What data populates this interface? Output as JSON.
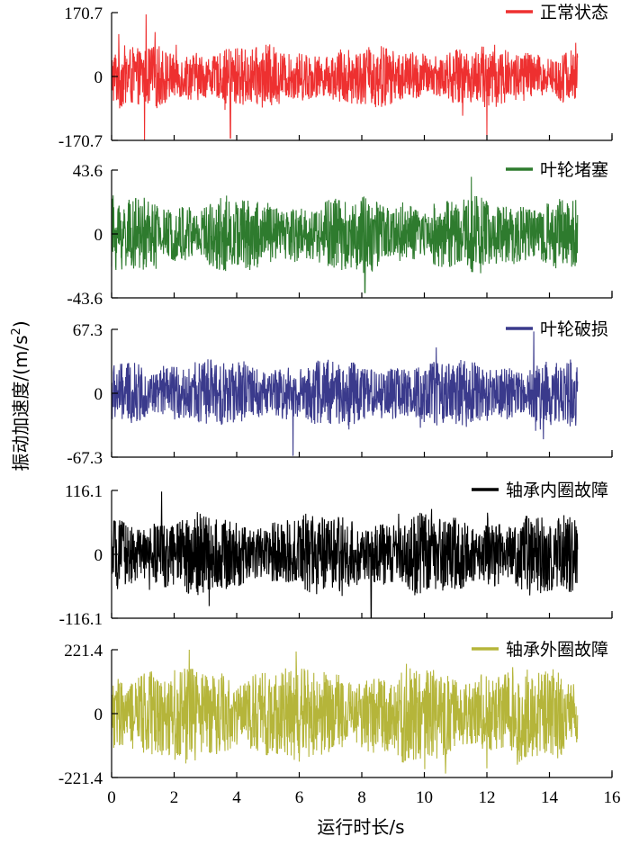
{
  "chart_data": {
    "type": "line",
    "xlabel": "运行时长/s",
    "ylabel_main": "振动加速度/(m/s",
    "ylabel_sup": "2",
    "ylabel_close": ")",
    "xlim": [
      0,
      16
    ],
    "xticks": [
      0,
      2,
      4,
      6,
      8,
      10,
      12,
      14,
      16
    ],
    "xtick_labels": [
      "0",
      "2",
      "4",
      "6",
      "8",
      "10",
      "12",
      "14",
      "16"
    ],
    "signal_duration_s": 14.9,
    "panels": [
      {
        "name": "正常状态",
        "color": "#ee3030",
        "ylim": [
          -170.7,
          170.7
        ],
        "ytick_labels": [
          "170.7",
          "0",
          "-170.7"
        ],
        "typical_amplitude": 70,
        "features": [
          {
            "x": 1.05,
            "value": -170
          },
          {
            "x": 1.1,
            "value": 166
          },
          {
            "x": 3.8,
            "value": -165
          },
          {
            "x": 12.0,
            "value": -160
          }
        ]
      },
      {
        "name": "叶轮堵塞",
        "color": "#2e7b2e",
        "ylim": [
          -43.6,
          43.6
        ],
        "ytick_labels": [
          "43.6",
          "0",
          "-43.6"
        ],
        "typical_amplitude": 22,
        "features": [
          {
            "x": 8.1,
            "value": -40
          },
          {
            "x": 11.5,
            "value": 39
          }
        ]
      },
      {
        "name": "叶轮破损",
        "color": "#3a3a8c",
        "ylim": [
          -67.3,
          67.3
        ],
        "ytick_labels": [
          "67.3",
          "0",
          "-67.3"
        ],
        "typical_amplitude": 30,
        "features": [
          {
            "x": 5.8,
            "value": -66
          },
          {
            "x": 13.5,
            "value": 65
          }
        ]
      },
      {
        "name": "轴承内圈故障",
        "color": "#000000",
        "ylim": [
          -116.1,
          116.1
        ],
        "ytick_labels": [
          "116.1",
          "0",
          "-116.1"
        ],
        "typical_amplitude": 62,
        "features": [
          {
            "x": 1.6,
            "value": 114
          },
          {
            "x": 8.3,
            "value": -115
          }
        ]
      },
      {
        "name": "轴承外圈故障",
        "color": "#b5b53a",
        "ylim": [
          -221.4,
          221.4
        ],
        "ytick_labels": [
          "221.4",
          "0",
          "-221.4"
        ],
        "typical_amplitude": 145,
        "features": [
          {
            "x": 5.9,
            "value": 215
          },
          {
            "x": 12.0,
            "value": -190
          }
        ]
      }
    ]
  }
}
